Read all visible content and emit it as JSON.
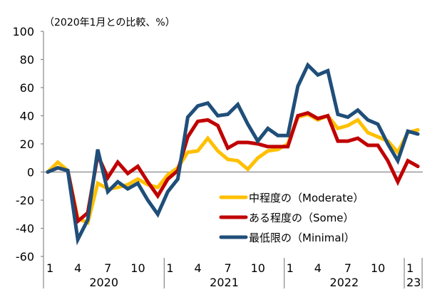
{
  "chart_data": {
    "type": "line",
    "title": "",
    "unit_label": "（2020年1月との比較、%）",
    "xlabel": "",
    "ylabel": "",
    "ylim": [
      -60,
      100
    ],
    "yticks": [
      100,
      80,
      60,
      40,
      20,
      0,
      -20,
      -40,
      -60
    ],
    "grid": false,
    "zero_line": true,
    "legend_position": "bottom-center",
    "x": [
      "2020-01",
      "2020-02",
      "2020-03",
      "2020-04",
      "2020-05",
      "2020-06",
      "2020-07",
      "2020-08",
      "2020-09",
      "2020-10",
      "2020-11",
      "2020-12",
      "2021-01",
      "2021-02",
      "2021-03",
      "2021-04",
      "2021-05",
      "2021-06",
      "2021-07",
      "2021-08",
      "2021-09",
      "2021-10",
      "2021-11",
      "2021-12",
      "2022-01",
      "2022-02",
      "2022-03",
      "2022-04",
      "2022-05",
      "2022-06",
      "2022-07",
      "2022-08",
      "2022-09",
      "2022-10",
      "2022-11",
      "2022-12",
      "2023-01",
      "2023-02"
    ],
    "month_tick_labels": [
      {
        "index": 0,
        "label": "1"
      },
      {
        "index": 3,
        "label": "4"
      },
      {
        "index": 6,
        "label": "7"
      },
      {
        "index": 9,
        "label": "10"
      },
      {
        "index": 12,
        "label": "1"
      },
      {
        "index": 15,
        "label": "4"
      },
      {
        "index": 18,
        "label": "7"
      },
      {
        "index": 21,
        "label": "10"
      },
      {
        "index": 24,
        "label": "1"
      },
      {
        "index": 27,
        "label": "4"
      },
      {
        "index": 30,
        "label": "7"
      },
      {
        "index": 33,
        "label": "10"
      },
      {
        "index": 36,
        "label": "1"
      }
    ],
    "year_groups": [
      {
        "label": "2020",
        "start": 0,
        "end": 11
      },
      {
        "label": "2021",
        "start": 12,
        "end": 23
      },
      {
        "label": "2022",
        "start": 24,
        "end": 35
      },
      {
        "label": "23",
        "start": 36,
        "end": 37
      }
    ],
    "series": [
      {
        "name": "中程度の（Moderate）",
        "color": "#FFC000",
        "values": [
          0,
          7,
          1,
          -33,
          -36,
          -8,
          -12,
          -11,
          -9,
          -5,
          -9,
          -11,
          -2,
          3,
          14,
          15,
          24,
          15,
          9,
          8,
          2,
          10,
          15,
          16,
          20,
          39,
          41,
          37,
          40,
          31,
          33,
          37,
          28,
          25,
          22,
          14,
          28,
          30
        ]
      },
      {
        "name": "ある程度の（Some）",
        "color": "#C00000",
        "values": [
          0,
          3,
          1,
          -35,
          -29,
          12,
          -4,
          7,
          -1,
          4,
          -7,
          -17,
          -5,
          1,
          25,
          36,
          37,
          33,
          17,
          21,
          21,
          20,
          18,
          18,
          18,
          40,
          42,
          38,
          40,
          22,
          22,
          24,
          19,
          19,
          8,
          -7,
          8,
          4
        ]
      },
      {
        "name": "最低限の（Minimal）",
        "color": "#1F4E79",
        "values": [
          0,
          3,
          1,
          -48,
          -34,
          16,
          -14,
          -7,
          -12,
          -8,
          -20,
          -30,
          -14,
          -5,
          39,
          47,
          49,
          40,
          41,
          48,
          34,
          22,
          31,
          26,
          26,
          61,
          76,
          69,
          72,
          41,
          39,
          44,
          37,
          34,
          20,
          8,
          29,
          27
        ]
      }
    ]
  }
}
